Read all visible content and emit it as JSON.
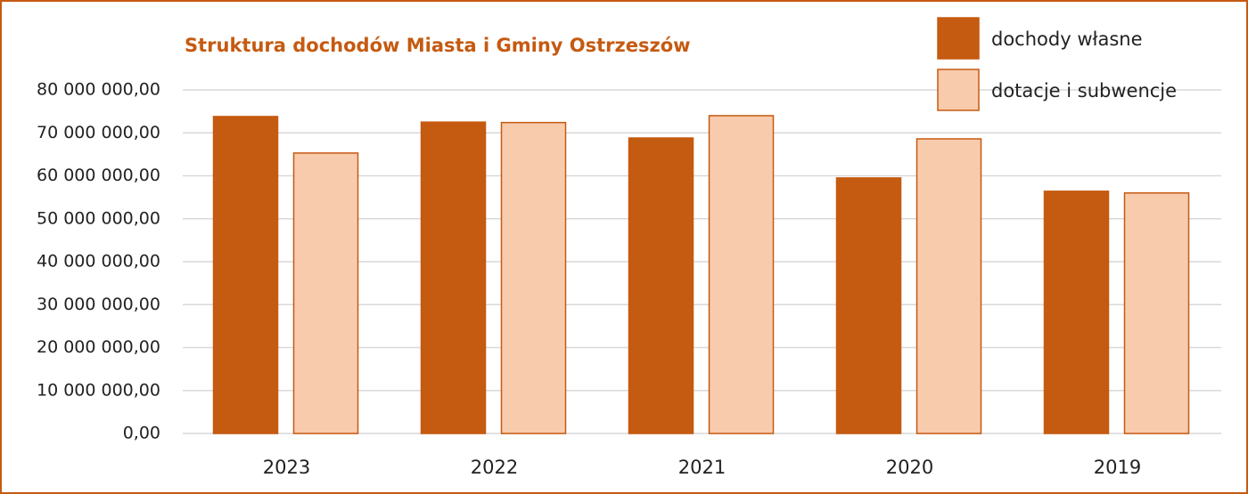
{
  "chart_data": {
    "type": "bar",
    "title": "Struktura dochodów Miasta i Gminy Ostrzeszów",
    "categories": [
      "2023",
      "2022",
      "2021",
      "2020",
      "2019"
    ],
    "series": [
      {
        "name": "dochody własne",
        "color": "#c55a11",
        "values": [
          73800000,
          72500000,
          68800000,
          59500000,
          56400000
        ]
      },
      {
        "name": "dotacje i subwencje",
        "color": "#f8cbad",
        "values": [
          65300000,
          72400000,
          74000000,
          68600000,
          56000000
        ]
      }
    ],
    "ylim": [
      0,
      80000000
    ],
    "yticks": [
      {
        "value": 0,
        "label": "0,00"
      },
      {
        "value": 10000000,
        "label": "10 000 000,00"
      },
      {
        "value": 20000000,
        "label": "20 000 000,00"
      },
      {
        "value": 30000000,
        "label": "30 000 000,00"
      },
      {
        "value": 40000000,
        "label": "40 000 000,00"
      },
      {
        "value": 50000000,
        "label": "50 000 000,00"
      },
      {
        "value": 60000000,
        "label": "60 000 000,00"
      },
      {
        "value": 70000000,
        "label": "70 000 000,00"
      },
      {
        "value": 80000000,
        "label": "80 000 000,00"
      }
    ],
    "grid": true,
    "legend": "top-right"
  }
}
